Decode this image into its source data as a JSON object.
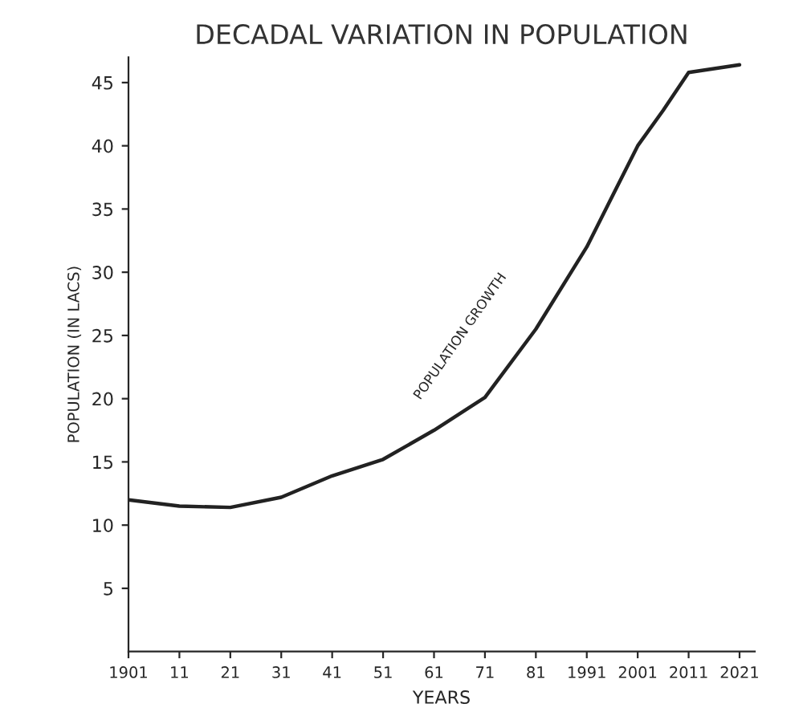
{
  "chart_data": {
    "type": "line",
    "title": "DECADAL VARIATION IN POPULATION",
    "xlabel": "YEARS",
    "ylabel": "POPULATION (IN LACS)",
    "x": [
      1901,
      1911,
      1921,
      1931,
      1941,
      1951,
      1961,
      1971,
      1981,
      1991,
      2001,
      2006,
      2011,
      2021
    ],
    "series": [
      {
        "color": "#222222",
        "values": [
          12.0,
          11.5,
          11.4,
          12.2,
          13.9,
          15.2,
          17.5,
          20.1,
          25.5,
          32.0,
          40.0,
          42.8,
          45.8,
          46.4
        ]
      }
    ],
    "xlim": [
      1901,
      2024
    ],
    "ylim": [
      0,
      47
    ],
    "xticks": [
      {
        "value": 1901,
        "label": "1901"
      },
      {
        "value": 1911,
        "label": "11"
      },
      {
        "value": 1921,
        "label": "21"
      },
      {
        "value": 1931,
        "label": "31"
      },
      {
        "value": 1941,
        "label": "41"
      },
      {
        "value": 1951,
        "label": "51"
      },
      {
        "value": 1961,
        "label": "61"
      },
      {
        "value": 1971,
        "label": "71"
      },
      {
        "value": 1981,
        "label": "81"
      },
      {
        "value": 1991,
        "label": "1991"
      },
      {
        "value": 2001,
        "label": "2001"
      },
      {
        "value": 2011,
        "label": "2011"
      },
      {
        "value": 2021,
        "label": "2021"
      }
    ],
    "yticks": [
      5,
      10,
      15,
      20,
      25,
      30,
      35,
      40,
      45
    ],
    "annotations": [
      "POPULATION GROWTH"
    ],
    "grid": false,
    "legend": false,
    "marker": "none",
    "line_style": "solid"
  }
}
